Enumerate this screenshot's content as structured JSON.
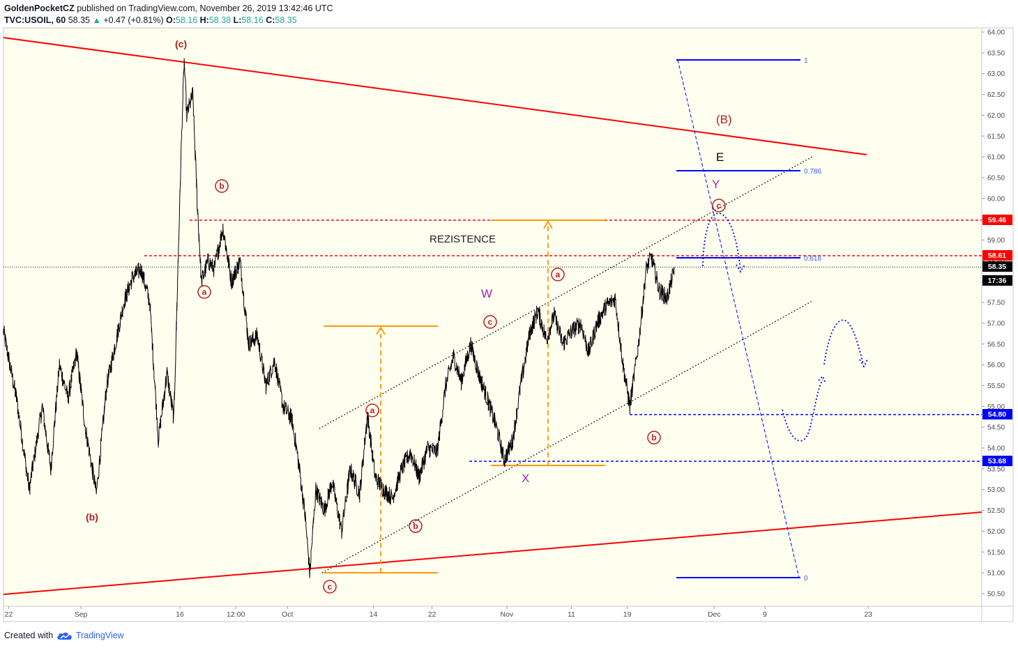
{
  "header": {
    "author": "GoldenPocketCZ",
    "published": "published on TradingView.com, November 26, 2019 13:42:46 UTC",
    "symbol": "TVC:USOIL, 60",
    "last": "58.35",
    "change": "+0.47 (+0.81%)",
    "o_label": "O:",
    "o": "58.16",
    "h_label": "H:",
    "h": "58.38",
    "l_label": "L:",
    "l": "58.16",
    "c_label": "C:",
    "c": "58.35"
  },
  "footer": {
    "created_with": "Created with",
    "brand": "TradingView"
  },
  "chart_data": {
    "type": "line",
    "ylim": [
      50.3,
      64.1
    ],
    "y_ticks": [
      "64.00",
      "63.50",
      "63.00",
      "62.50",
      "62.00",
      "61.50",
      "61.00",
      "60.50",
      "60.00",
      "59.50",
      "59.00",
      "58.50",
      "58.00",
      "57.50",
      "57.00",
      "56.50",
      "56.00",
      "55.50",
      "55.00",
      "54.50",
      "54.00",
      "53.50",
      "53.00",
      "52.50",
      "52.00",
      "51.50",
      "51.00",
      "50.50"
    ],
    "x_ticks": [
      {
        "label": "22",
        "t": 0.6
      },
      {
        "label": "Sep",
        "t": 9
      },
      {
        "label": "16",
        "t": 20.5
      },
      {
        "label": "12:00",
        "t": 27
      },
      {
        "label": "Oct",
        "t": 33
      },
      {
        "label": "14",
        "t": 43
      },
      {
        "label": "22",
        "t": 49.8
      },
      {
        "label": "Nov",
        "t": 58.5
      },
      {
        "label": "11",
        "t": 66
      },
      {
        "label": "19",
        "t": 72.5
      },
      {
        "label": "Dec",
        "t": 82.6
      },
      {
        "label": "9",
        "t": 88.5
      },
      {
        "label": "23",
        "t": 100.5
      }
    ],
    "price_keypoints": [
      [
        0,
        56.8
      ],
      [
        1.5,
        55.2
      ],
      [
        3,
        53.0
      ],
      [
        4.5,
        55.0
      ],
      [
        5.5,
        53.5
      ],
      [
        6.5,
        56.0
      ],
      [
        7.5,
        55.2
      ],
      [
        8.5,
        56.3
      ],
      [
        9.5,
        54.5
      ],
      [
        10.8,
        52.9
      ],
      [
        12,
        55.5
      ],
      [
        13,
        56.5
      ],
      [
        14,
        57.5
      ],
      [
        15,
        58.1
      ],
      [
        16,
        58.3
      ],
      [
        17,
        57.5
      ],
      [
        18,
        54.2
      ],
      [
        19,
        55.8
      ],
      [
        19.8,
        54.7
      ],
      [
        20.3,
        58.5
      ],
      [
        20.7,
        61.5
      ],
      [
        21.0,
        63.3
      ],
      [
        21.3,
        62.0
      ],
      [
        22,
        62.5
      ],
      [
        22.5,
        60.0
      ],
      [
        23,
        58.0
      ],
      [
        23.8,
        58.5
      ],
      [
        24.5,
        58.3
      ],
      [
        25.5,
        59.3
      ],
      [
        26.5,
        58.0
      ],
      [
        27.5,
        58.5
      ],
      [
        28.5,
        56.5
      ],
      [
        29.5,
        56.7
      ],
      [
        30.5,
        55.5
      ],
      [
        31.5,
        56.1
      ],
      [
        32.5,
        55.0
      ],
      [
        33.5,
        54.7
      ],
      [
        34.2,
        53.8
      ],
      [
        35,
        52.5
      ],
      [
        35.6,
        51.0
      ],
      [
        36.3,
        53.0
      ],
      [
        37.3,
        52.5
      ],
      [
        38.2,
        53.2
      ],
      [
        39.3,
        52.0
      ],
      [
        40.3,
        53.5
      ],
      [
        41.4,
        52.9
      ],
      [
        42.3,
        54.8
      ],
      [
        43.2,
        53.3
      ],
      [
        44.2,
        53.0
      ],
      [
        45.2,
        52.8
      ],
      [
        46.3,
        53.5
      ],
      [
        47.3,
        53.9
      ],
      [
        48.3,
        53.3
      ],
      [
        49.3,
        54.0
      ],
      [
        50.4,
        53.9
      ],
      [
        51.4,
        55.5
      ],
      [
        52.3,
        56.2
      ],
      [
        53.2,
        55.6
      ],
      [
        54.3,
        56.5
      ],
      [
        55.2,
        55.8
      ],
      [
        56.2,
        55.2
      ],
      [
        57.3,
        54.5
      ],
      [
        58.2,
        53.7
      ],
      [
        59.2,
        54.2
      ],
      [
        60.1,
        55.5
      ],
      [
        61.2,
        56.8
      ],
      [
        62.1,
        57.3
      ],
      [
        63.1,
        56.6
      ],
      [
        64.0,
        57.2
      ],
      [
        65.0,
        56.5
      ],
      [
        66.0,
        56.8
      ],
      [
        67.1,
        57.0
      ],
      [
        68.0,
        56.3
      ],
      [
        69.0,
        57.0
      ],
      [
        70.0,
        57.4
      ],
      [
        71.1,
        57.6
      ],
      [
        72.0,
        56.0
      ],
      [
        72.8,
        55.0
      ],
      [
        73.8,
        56.5
      ],
      [
        74.7,
        58.3
      ],
      [
        75.3,
        58.6
      ],
      [
        76.2,
        57.8
      ],
      [
        77.1,
        57.6
      ],
      [
        78.0,
        58.3
      ]
    ],
    "last_time": 78.0,
    "last_price": 58.35,
    "price_labels": [
      {
        "value": "59.46",
        "color": "#ff0000"
      },
      {
        "value": "58.61",
        "color": "#ff0000"
      },
      {
        "value": "58.35",
        "color": "#000000"
      },
      {
        "value": "17:36",
        "color": "#000000"
      },
      {
        "value": "54.80",
        "color": "#0000ff"
      },
      {
        "value": "53.68",
        "color": "#0000ff"
      }
    ],
    "fib_levels": [
      "1",
      "0.786",
      "0.618",
      "0"
    ],
    "annotations": {
      "resistance_text": "REZISTENCE",
      "wave_c_top": "(c)",
      "wave_b_low": "(b)",
      "wave_B": "(B)",
      "wave_E": "E",
      "wave_W": "W",
      "wave_X": "X",
      "wave_Y": "Y",
      "circle_a": "a",
      "circle_b": "b",
      "circle_c": "c"
    },
    "colors": {
      "price": "#000000",
      "trend": "#ff0000",
      "fib": "#0000ff",
      "measure": "#ff9800",
      "channel": "#000000",
      "wave_red": "#b71c1c",
      "wave_purple": "#9c27b0",
      "background": "#fffff0"
    }
  }
}
